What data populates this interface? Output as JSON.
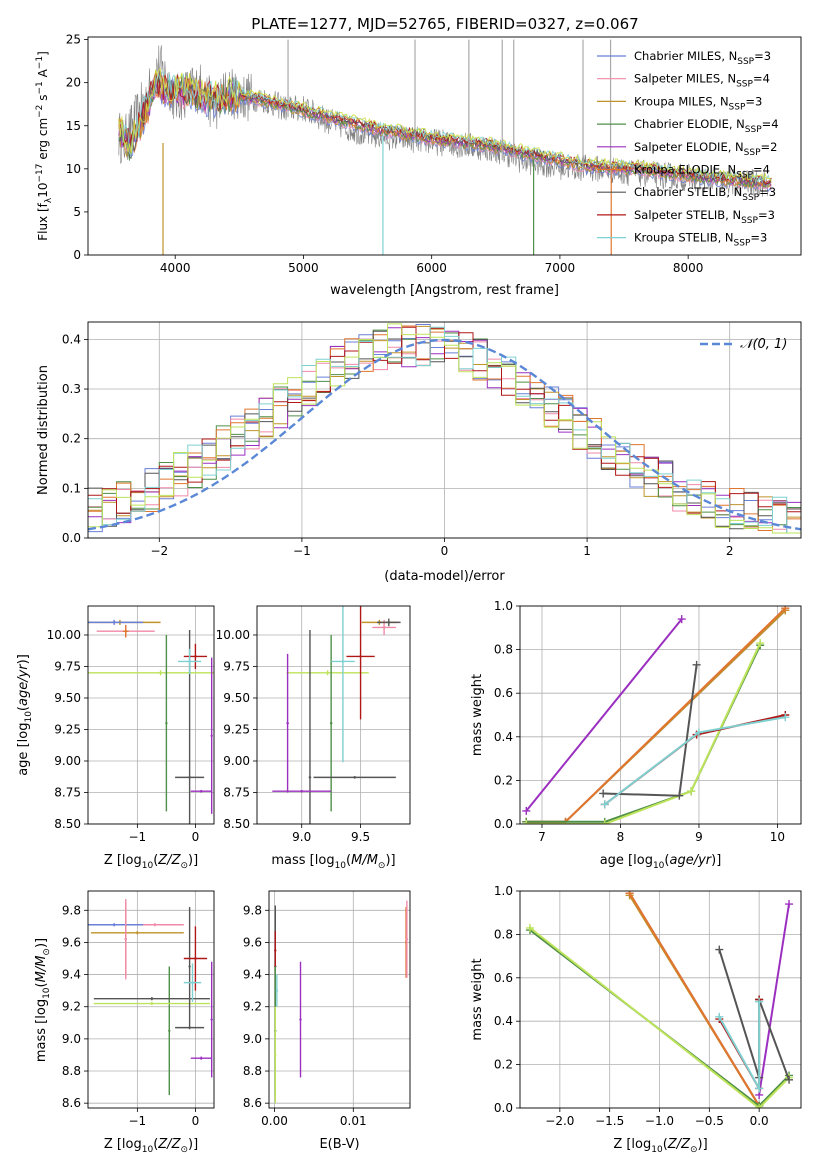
{
  "figure": {
    "title": "PLATE=1277, MJD=52765, FIBERID=0327, z=0.067"
  },
  "palette": {
    "Chabrier MILES": "#6a7fd8",
    "Salpeter MILES": "#f08aa8",
    "Kroupa MILES": "#c0922a",
    "Chabrier ELODIE": "#4f8f47",
    "Salpeter ELODIE": "#9b30c0",
    "Kroupa ELODIE": "#e0762e",
    "Chabrier STELIB": "#555555",
    "Salpeter STELIB": "#b01818",
    "Kroupa STELIB": "#7fd0d0",
    "extra_1": "#bde35a",
    "extra_2": "#d2df40",
    "data": "#808080",
    "normal": "#5b88d6"
  },
  "chart_data": [
    {
      "id": "spectrum",
      "type": "line",
      "title": "PLATE=1277, MJD=52765, FIBERID=0327, z=0.067",
      "xlabel": "wavelength [Angstrom, rest frame]",
      "ylabel": "Flux [f_λ 10⁻¹⁷ erg cm⁻² s⁻¹ A⁻¹]",
      "xlim": [
        3320,
        8880
      ],
      "ylim": [
        0,
        25.3
      ],
      "xticks": [
        4000,
        5000,
        6000,
        7000,
        8000
      ],
      "yticks": [
        0,
        5,
        10,
        15,
        20,
        25
      ],
      "legend": [
        {
          "name": "Chabrier MILES",
          "nssp": "3"
        },
        {
          "name": "Salpeter MILES",
          "nssp": "4"
        },
        {
          "name": "Kroupa MILES",
          "nssp": "3"
        },
        {
          "name": "Chabrier ELODIE",
          "nssp": "4"
        },
        {
          "name": "Salpeter ELODIE",
          "nssp": "2"
        },
        {
          "name": "Kroupa ELODIE",
          "nssp": "4"
        },
        {
          "name": "Chabrier STELIB",
          "nssp": "3"
        },
        {
          "name": "Salpeter STELIB",
          "nssp": "3"
        },
        {
          "name": "Kroupa STELIB",
          "nssp": "3"
        }
      ],
      "data_envelope": [
        [
          3560,
          14
        ],
        [
          3600,
          13
        ],
        [
          3700,
          16
        ],
        [
          3800,
          19
        ],
        [
          3870,
          22
        ],
        [
          3950,
          20
        ],
        [
          4000,
          18
        ],
        [
          4100,
          19
        ],
        [
          4200,
          19.5
        ],
        [
          4300,
          17
        ],
        [
          4400,
          19
        ],
        [
          4500,
          18.5
        ],
        [
          4700,
          18
        ],
        [
          4860,
          17
        ],
        [
          5000,
          17
        ],
        [
          5200,
          15.5
        ],
        [
          5500,
          14
        ],
        [
          5800,
          13.5
        ],
        [
          6100,
          13
        ],
        [
          6400,
          12.5
        ],
        [
          6560,
          12
        ],
        [
          6700,
          11
        ],
        [
          7000,
          10.3
        ],
        [
          7300,
          10
        ],
        [
          7600,
          9.5
        ],
        [
          8000,
          9
        ],
        [
          8300,
          8.5
        ],
        [
          8620,
          8.3
        ]
      ],
      "model_envelope": [
        [
          3560,
          14.5
        ],
        [
          3650,
          12.5
        ],
        [
          3750,
          16
        ],
        [
          3850,
          19.5
        ],
        [
          3950,
          19
        ],
        [
          4100,
          19
        ],
        [
          4300,
          18
        ],
        [
          4500,
          18.5
        ],
        [
          4800,
          17.5
        ],
        [
          5200,
          16
        ],
        [
          5600,
          14.5
        ],
        [
          6000,
          13.5
        ],
        [
          6400,
          12.8
        ],
        [
          6800,
          11.6
        ],
        [
          7200,
          10.3
        ],
        [
          7600,
          10
        ],
        [
          8000,
          9.2
        ],
        [
          8300,
          8.7
        ],
        [
          8650,
          8.3
        ]
      ],
      "spikes": [
        {
          "x": 3905,
          "bottom": 0,
          "top": 13,
          "color": "#c0922a"
        },
        {
          "x": 5620,
          "bottom": 0,
          "top": 14,
          "color": "#7fd0d0"
        },
        {
          "x": 6795,
          "bottom": 0,
          "top": 11,
          "color": "#4f8f47"
        },
        {
          "x": 7400,
          "bottom": 0,
          "top": 10,
          "color": "#e0762e"
        },
        {
          "x": 4880,
          "bottom": 16,
          "top": 25,
          "color": "#aaaaaa"
        },
        {
          "x": 5870,
          "bottom": 13,
          "top": 25,
          "color": "#aaaaaa"
        },
        {
          "x": 6290,
          "bottom": 12,
          "top": 25,
          "color": "#aaaaaa"
        },
        {
          "x": 6550,
          "bottom": 11,
          "top": 25,
          "color": "#aaaaaa"
        },
        {
          "x": 6640,
          "bottom": 11,
          "top": 25,
          "color": "#aaaaaa"
        },
        {
          "x": 7180,
          "bottom": 10,
          "top": 25,
          "color": "#aaaaaa"
        },
        {
          "x": 7395,
          "bottom": 9,
          "top": 25,
          "color": "#aaaaaa"
        }
      ]
    },
    {
      "id": "residuals",
      "type": "histogram",
      "xlabel": "(data-model)/error",
      "ylabel": "Normed distribution",
      "xlim": [
        -2.5,
        2.5
      ],
      "ylim": [
        0,
        0.435
      ],
      "xticks": [
        -2,
        -1,
        0,
        1,
        2
      ],
      "yticks": [
        0.0,
        0.1,
        0.2,
        0.3,
        0.4
      ],
      "bin_edges_range": [
        -2.5,
        2.5
      ],
      "n_bins": 50,
      "legend": [
        "𝒩(0, 1)"
      ],
      "normal": {
        "mean": 0,
        "std": 1
      }
    },
    {
      "id": "age_vs_Z",
      "type": "errorbar",
      "xlabel": "Z [log₁₀(Z/Z☉)]",
      "ylabel": "age  [log₁₀(age/yr)]",
      "xlim": [
        -1.85,
        0.32
      ],
      "ylim": [
        8.5,
        10.23
      ],
      "xticks": [
        -1,
        0
      ],
      "yticks": [
        8.5,
        8.75,
        9.0,
        9.25,
        9.5,
        9.75,
        10.0
      ],
      "points": [
        {
          "color": "#c0922a",
          "x": -1.3,
          "y": 10.1,
          "xe": 0.7,
          "ye": 0.02
        },
        {
          "color": "#6a7fd8",
          "x": -1.4,
          "y": 10.1,
          "xe": 0.5,
          "ye": 0.02
        },
        {
          "color": "#f08aa8",
          "x": -1.2,
          "y": 10.03,
          "xe": 0.5,
          "ye": 0.05
        },
        {
          "color": "#e0762e",
          "x": -1.2,
          "y": 10.03,
          "xe": 0.05,
          "ye": 0.05
        },
        {
          "color": "#bde35a",
          "x": -0.6,
          "y": 9.7,
          "xe": 1.25,
          "ye": 0.02
        },
        {
          "color": "#4f8f47",
          "x": -0.5,
          "y": 9.3,
          "xe": 0.01,
          "ye": 0.7
        },
        {
          "color": "#555555",
          "x": -0.1,
          "y": 8.87,
          "xe": 0.25,
          "ye": 1.17
        },
        {
          "color": "#b01818",
          "x": 0.0,
          "y": 9.83,
          "xe": 0.2,
          "ye": 0.1
        },
        {
          "color": "#7fd0d0",
          "x": -0.1,
          "y": 9.79,
          "xe": 0.2,
          "ye": 0.1
        },
        {
          "color": "#9b30c0",
          "x": 0.28,
          "y": 9.2,
          "xe": 0.01,
          "ye": 0.62
        },
        {
          "color": "#9b30c0",
          "x": 0.1,
          "y": 8.76,
          "xe": 0.18,
          "ye": 0.01
        }
      ]
    },
    {
      "id": "age_vs_mass",
      "type": "errorbar",
      "xlabel": "mass [log₁₀(M/M☉)]",
      "ylabel": "",
      "xlim": [
        8.62,
        9.92
      ],
      "ylim": [
        8.5,
        10.23
      ],
      "xticks": [
        9.0,
        9.5
      ],
      "yticks": [
        8.5,
        8.75,
        9.0,
        9.25,
        9.5,
        9.75,
        10.0
      ],
      "points": [
        {
          "color": "#c0922a",
          "x": 9.66,
          "y": 10.1,
          "xe": 0.15,
          "ye": 0.02
        },
        {
          "color": "#f08aa8",
          "x": 9.7,
          "y": 10.06,
          "xe": 0.1,
          "ye": 0.06
        },
        {
          "color": "#555555",
          "x": 9.74,
          "y": 10.1,
          "xe": 0.1,
          "ye": 0.03
        },
        {
          "color": "#bde35a",
          "x": 9.22,
          "y": 9.7,
          "xe": 0.35,
          "ye": 0.02
        },
        {
          "color": "#4f8f47",
          "x": 9.25,
          "y": 9.3,
          "xe": 0.01,
          "ye": 0.7
        },
        {
          "color": "#555555",
          "x": 9.07,
          "y": 8.87,
          "xe": 0.01,
          "ye": 1.17
        },
        {
          "color": "#555555",
          "x": 9.45,
          "y": 8.87,
          "xe": 0.35,
          "ye": 0.01
        },
        {
          "color": "#b01818",
          "x": 9.5,
          "y": 9.83,
          "xe": 0.12,
          "ye": 0.5
        },
        {
          "color": "#7fd0d0",
          "x": 9.35,
          "y": 9.79,
          "xe": 0.1,
          "ye": 0.8
        },
        {
          "color": "#9b30c0",
          "x": 8.88,
          "y": 9.3,
          "xe": 0.01,
          "ye": 0.55
        },
        {
          "color": "#9b30c0",
          "x": 9.0,
          "y": 8.76,
          "xe": 0.25,
          "ye": 0.01
        }
      ]
    },
    {
      "id": "mass_weight_vs_age",
      "type": "line",
      "xlabel": "age  [log₁₀(age/yr)]",
      "ylabel": "mass weight",
      "xlim": [
        6.72,
        10.3
      ],
      "ylim": [
        0,
        1.0
      ],
      "xticks": [
        7,
        8,
        9,
        10
      ],
      "yticks": [
        0.0,
        0.2,
        0.4,
        0.6,
        0.8,
        1.0
      ],
      "series": [
        {
          "color": "#6a7fd8",
          "x": [
            6.8,
            7.3,
            10.1
          ],
          "y": [
            0.01,
            0.01,
            0.98
          ]
        },
        {
          "color": "#f08aa8",
          "x": [
            6.8,
            7.3,
            10.1
          ],
          "y": [
            0.01,
            0.01,
            0.99
          ]
        },
        {
          "color": "#c0922a",
          "x": [
            6.8,
            7.3,
            10.1
          ],
          "y": [
            0.01,
            0.01,
            0.98
          ]
        },
        {
          "color": "#e0762e",
          "x": [
            6.8,
            7.3,
            10.1
          ],
          "y": [
            0.01,
            0.01,
            0.99
          ]
        },
        {
          "color": "#9b30c0",
          "x": [
            6.8,
            8.78
          ],
          "y": [
            0.06,
            0.94
          ]
        },
        {
          "color": "#4f8f47",
          "x": [
            6.8,
            7.8,
            8.9,
            9.78
          ],
          "y": [
            0.01,
            0.01,
            0.15,
            0.82
          ]
        },
        {
          "color": "#bde35a",
          "x": [
            6.8,
            7.8,
            8.9,
            9.78
          ],
          "y": [
            0.0,
            0.0,
            0.15,
            0.83
          ]
        },
        {
          "color": "#555555",
          "x": [
            7.78,
            8.75,
            8.97
          ],
          "y": [
            0.14,
            0.13,
            0.73
          ]
        },
        {
          "color": "#b01818",
          "x": [
            7.8,
            8.97,
            10.1
          ],
          "y": [
            0.09,
            0.41,
            0.5
          ]
        },
        {
          "color": "#7fd0d0",
          "x": [
            7.8,
            9.0,
            10.1
          ],
          "y": [
            0.09,
            0.42,
            0.49
          ]
        }
      ]
    },
    {
      "id": "mass_vs_Z",
      "type": "errorbar",
      "xlabel": "Z [log₁₀(Z/Z☉)]",
      "ylabel": "mass [log₁₀(M/M☉)]",
      "xlim": [
        -1.85,
        0.32
      ],
      "ylim": [
        8.57,
        9.92
      ],
      "xticks": [
        -1,
        0
      ],
      "yticks": [
        8.6,
        8.8,
        9.0,
        9.2,
        9.4,
        9.6,
        9.8
      ],
      "points": [
        {
          "color": "#f08aa8",
          "x": -0.7,
          "y": 9.71,
          "xe": 0.5,
          "ye": 0.01
        },
        {
          "color": "#6a7fd8",
          "x": -1.4,
          "y": 9.71,
          "xe": 0.5,
          "ye": 0.01
        },
        {
          "color": "#c0922a",
          "x": -1.0,
          "y": 9.66,
          "xe": 0.8,
          "ye": 0.01
        },
        {
          "color": "#e0762e",
          "x": -1.2,
          "y": 9.62,
          "xe": 0.01,
          "ye": 0.23
        },
        {
          "color": "#f08aa8",
          "x": -1.2,
          "y": 9.62,
          "xe": 0.01,
          "ye": 0.25
        },
        {
          "color": "#4f8f47",
          "x": -0.45,
          "y": 9.05,
          "xe": 0.01,
          "ye": 0.4
        },
        {
          "color": "#555555",
          "x": -0.75,
          "y": 9.25,
          "xe": 1.0,
          "ye": 0.01
        },
        {
          "color": "#bde35a",
          "x": -0.75,
          "y": 9.22,
          "xe": 1.0,
          "ye": 0.01
        },
        {
          "color": "#555555",
          "x": -0.1,
          "y": 9.07,
          "xe": 0.25,
          "ye": 0.01
        },
        {
          "color": "#555555",
          "x": -0.1,
          "y": 9.45,
          "xe": 0.01,
          "ye": 0.37
        },
        {
          "color": "#b01818",
          "x": 0.0,
          "y": 9.5,
          "xe": 0.2,
          "ye": 0.2
        },
        {
          "color": "#7fd0d0",
          "x": -0.05,
          "y": 9.35,
          "xe": 0.15,
          "ye": 0.12
        },
        {
          "color": "#9b30c0",
          "x": 0.1,
          "y": 8.88,
          "xe": 0.18,
          "ye": 0.01
        },
        {
          "color": "#9b30c0",
          "x": 0.28,
          "y": 9.12,
          "xe": 0.01,
          "ye": 0.36
        }
      ]
    },
    {
      "id": "mass_vs_EBV",
      "type": "errorbar",
      "xlabel": "E(B-V)",
      "ylabel": "",
      "xlim": [
        -0.0007,
        0.0172
      ],
      "ylim": [
        8.57,
        9.92
      ],
      "xticks": [
        0.0,
        0.01
      ],
      "yticks": [
        8.6,
        8.8,
        9.0,
        9.2,
        9.4,
        9.6,
        9.8
      ],
      "points": [
        {
          "color": "#555555",
          "x": 0.0001,
          "y": 9.45,
          "xe": 0.0,
          "ye": 0.38
        },
        {
          "color": "#b01818",
          "x": 0.0001,
          "y": 9.55,
          "xe": 0.0,
          "ye": 0.12
        },
        {
          "color": "#4f8f47",
          "x": 0.0001,
          "y": 9.05,
          "xe": 0.0,
          "ye": 0.4
        },
        {
          "color": "#bde35a",
          "x": 0.0001,
          "y": 8.9,
          "xe": 0.0,
          "ye": 0.3
        },
        {
          "color": "#7fd0d0",
          "x": 0.0003,
          "y": 9.3,
          "xe": 0.0,
          "ye": 0.1
        },
        {
          "color": "#9b30c0",
          "x": 0.0033,
          "y": 9.12,
          "xe": 0.0,
          "ye": 0.36
        },
        {
          "color": "#e0762e",
          "x": 0.0167,
          "y": 9.6,
          "xe": 0.0,
          "ye": 0.22
        },
        {
          "color": "#f08aa8",
          "x": 0.0168,
          "y": 9.62,
          "xe": 0.0,
          "ye": 0.24
        }
      ]
    },
    {
      "id": "mass_weight_vs_Z",
      "type": "line",
      "xlabel": "Z [log₁₀(Z/Z☉)]",
      "ylabel": "mass weight",
      "xlim": [
        -2.4,
        0.42
      ],
      "ylim": [
        0,
        1.0
      ],
      "xticks": [
        -2.0,
        -1.5,
        -1.0,
        -0.5,
        0.0
      ],
      "yticks": [
        0.0,
        0.2,
        0.4,
        0.6,
        0.8,
        1.0
      ],
      "series": [
        {
          "color": "#6a7fd8",
          "x": [
            -1.3,
            0.0
          ],
          "y": [
            0.99,
            0.01
          ]
        },
        {
          "color": "#f08aa8",
          "x": [
            -1.3,
            0.0
          ],
          "y": [
            0.99,
            0.01
          ]
        },
        {
          "color": "#c0922a",
          "x": [
            -1.3,
            0.0
          ],
          "y": [
            0.98,
            0.01
          ]
        },
        {
          "color": "#e0762e",
          "x": [
            -1.3,
            0.0
          ],
          "y": [
            0.99,
            0.01
          ]
        },
        {
          "color": "#4f8f47",
          "x": [
            -2.3,
            0.0,
            0.3
          ],
          "y": [
            0.82,
            0.01,
            0.15
          ]
        },
        {
          "color": "#bde35a",
          "x": [
            -2.3,
            0.0,
            0.3
          ],
          "y": [
            0.83,
            0.0,
            0.14
          ]
        },
        {
          "color": "#9b30c0",
          "x": [
            0.0,
            0.3
          ],
          "y": [
            0.06,
            0.94
          ]
        },
        {
          "color": "#555555",
          "x": [
            -0.4,
            0.0,
            0.0,
            0.3
          ],
          "y": [
            0.73,
            0.14,
            0.5,
            0.13
          ]
        },
        {
          "color": "#b01818",
          "x": [
            -0.4,
            0.0,
            0.0
          ],
          "y": [
            0.41,
            0.09,
            0.5
          ]
        },
        {
          "color": "#7fd0d0",
          "x": [
            -0.4,
            0.0,
            0.0
          ],
          "y": [
            0.42,
            0.09,
            0.49
          ]
        }
      ]
    }
  ]
}
